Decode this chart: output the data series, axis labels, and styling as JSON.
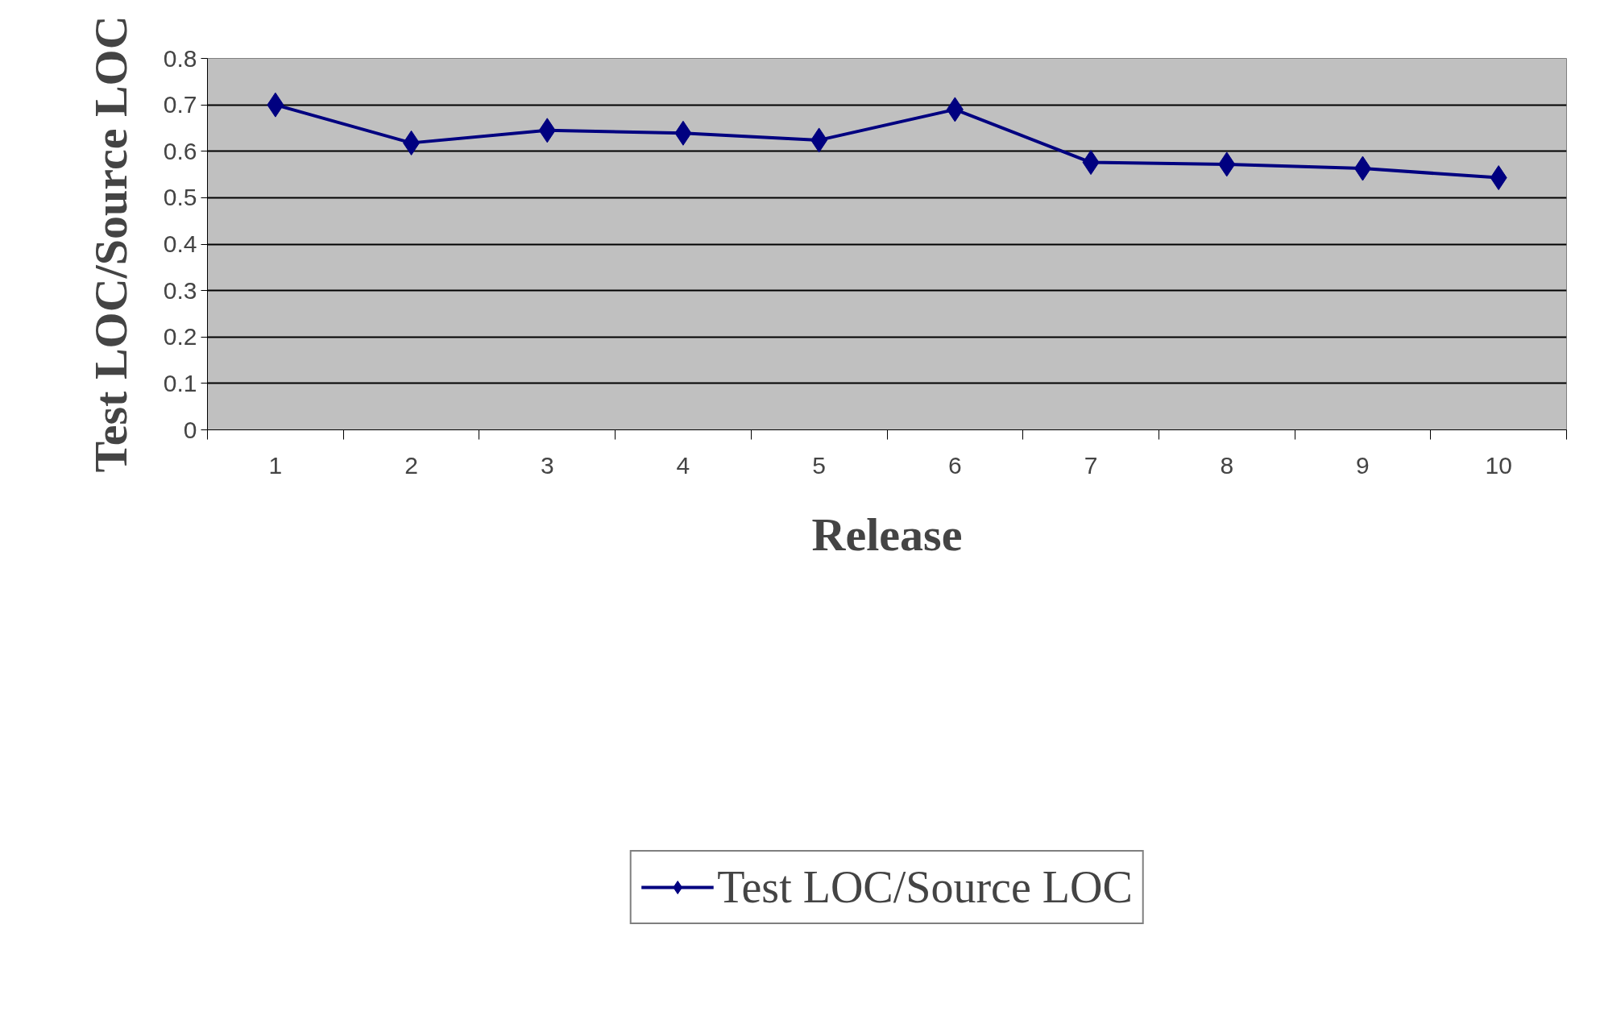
{
  "chart_data": {
    "type": "line",
    "xlabel": "Release",
    "ylabel": "Test LOC/Source LOC",
    "categories": [
      "1",
      "2",
      "3",
      "4",
      "5",
      "6",
      "7",
      "8",
      "9",
      "10"
    ],
    "series": [
      {
        "name": "Test LOC/Source LOC",
        "color": "#000080",
        "values": [
          0.7,
          0.618,
          0.645,
          0.639,
          0.624,
          0.69,
          0.576,
          0.572,
          0.563,
          0.543
        ]
      }
    ],
    "ylim": [
      0,
      0.8
    ],
    "yticks": [
      0,
      0.1,
      0.2,
      0.3,
      0.4,
      0.5,
      0.6,
      0.7,
      0.8
    ],
    "grid": "y",
    "legend": "bottom",
    "marker": "diamond",
    "line_style": "solid"
  }
}
